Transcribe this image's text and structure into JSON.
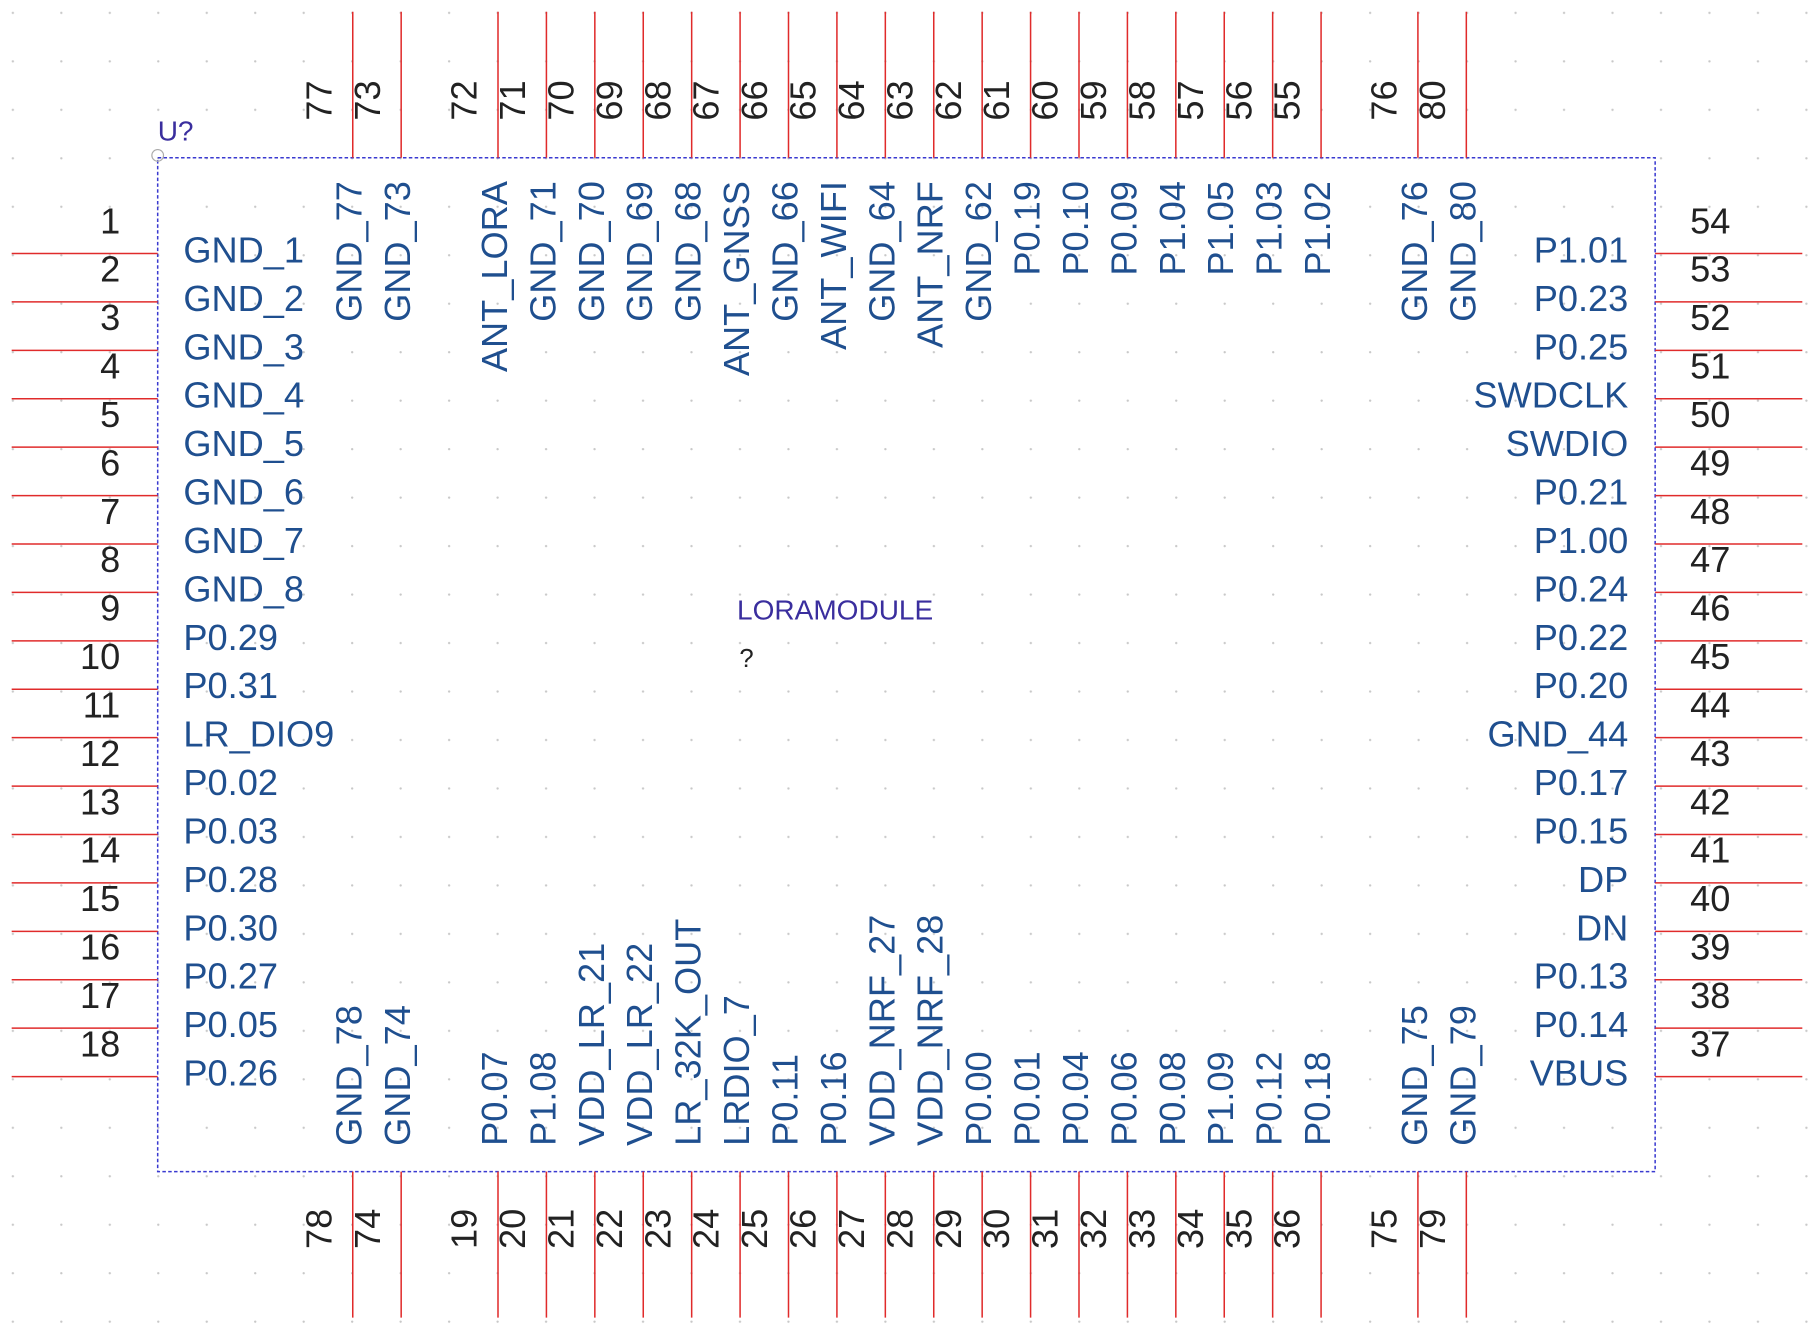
{
  "designator": "U?",
  "part_name": "LORAMODULE",
  "value": "?",
  "left_pins": [
    {
      "number": "1",
      "name": "GND_1"
    },
    {
      "number": "2",
      "name": "GND_2"
    },
    {
      "number": "3",
      "name": "GND_3"
    },
    {
      "number": "4",
      "name": "GND_4"
    },
    {
      "number": "5",
      "name": "GND_5"
    },
    {
      "number": "6",
      "name": "GND_6"
    },
    {
      "number": "7",
      "name": "GND_7"
    },
    {
      "number": "8",
      "name": "GND_8"
    },
    {
      "number": "9",
      "name": "P0.29"
    },
    {
      "number": "10",
      "name": "P0.31"
    },
    {
      "number": "11",
      "name": "LR_DIO9"
    },
    {
      "number": "12",
      "name": "P0.02"
    },
    {
      "number": "13",
      "name": "P0.03"
    },
    {
      "number": "14",
      "name": "P0.28"
    },
    {
      "number": "15",
      "name": "P0.30"
    },
    {
      "number": "16",
      "name": "P0.27"
    },
    {
      "number": "17",
      "name": "P0.05"
    },
    {
      "number": "18",
      "name": "P0.26"
    }
  ],
  "right_pins": [
    {
      "number": "54",
      "name": "P1.01"
    },
    {
      "number": "53",
      "name": "P0.23"
    },
    {
      "number": "52",
      "name": "P0.25"
    },
    {
      "number": "51",
      "name": "SWDCLK"
    },
    {
      "number": "50",
      "name": "SWDIO"
    },
    {
      "number": "49",
      "name": "P0.21"
    },
    {
      "number": "48",
      "name": "P1.00"
    },
    {
      "number": "47",
      "name": "P0.24"
    },
    {
      "number": "46",
      "name": "P0.22"
    },
    {
      "number": "45",
      "name": "P0.20"
    },
    {
      "number": "44",
      "name": "GND_44"
    },
    {
      "number": "43",
      "name": "P0.17"
    },
    {
      "number": "42",
      "name": "P0.15"
    },
    {
      "number": "41",
      "name": "DP"
    },
    {
      "number": "40",
      "name": "DN"
    },
    {
      "number": "39",
      "name": "P0.13"
    },
    {
      "number": "38",
      "name": "P0.14"
    },
    {
      "number": "37",
      "name": "VBUS"
    }
  ],
  "top_pins": [
    {
      "number": "77",
      "name": "GND_77"
    },
    {
      "number": "73",
      "name": "GND_73"
    },
    {
      "number": "72",
      "name": "ANT_LORA"
    },
    {
      "number": "71",
      "name": "GND_71"
    },
    {
      "number": "70",
      "name": "GND_70"
    },
    {
      "number": "69",
      "name": "GND_69"
    },
    {
      "number": "68",
      "name": "GND_68"
    },
    {
      "number": "67",
      "name": "ANT_GNSS"
    },
    {
      "number": "66",
      "name": "GND_66"
    },
    {
      "number": "65",
      "name": "ANT_WIFI"
    },
    {
      "number": "64",
      "name": "GND_64"
    },
    {
      "number": "63",
      "name": "ANT_NRF"
    },
    {
      "number": "62",
      "name": "GND_62"
    },
    {
      "number": "61",
      "name": "P0.19"
    },
    {
      "number": "60",
      "name": "P0.10"
    },
    {
      "number": "59",
      "name": "P0.09"
    },
    {
      "number": "58",
      "name": "P1.04"
    },
    {
      "number": "57",
      "name": "P1.05"
    },
    {
      "number": "56",
      "name": "P1.03"
    },
    {
      "number": "55",
      "name": "P1.02"
    },
    {
      "number": "76",
      "name": "GND_76"
    },
    {
      "number": "80",
      "name": "GND_80"
    }
  ],
  "bottom_pins": [
    {
      "number": "78",
      "name": "GND_78"
    },
    {
      "number": "74",
      "name": "GND_74"
    },
    {
      "number": "19",
      "name": "P0.07"
    },
    {
      "number": "20",
      "name": "P1.08"
    },
    {
      "number": "21",
      "name": "VDD_LR_21"
    },
    {
      "number": "22",
      "name": "VDD_LR_22"
    },
    {
      "number": "23",
      "name": "LR_32K_OUT"
    },
    {
      "number": "24",
      "name": "LRDIO_7"
    },
    {
      "number": "25",
      "name": "P0.11"
    },
    {
      "number": "26",
      "name": "P0.16"
    },
    {
      "number": "27",
      "name": "VDD_NRF_27"
    },
    {
      "number": "28",
      "name": "VDD_NRF_28"
    },
    {
      "number": "29",
      "name": "P0.00"
    },
    {
      "number": "30",
      "name": "P0.01"
    },
    {
      "number": "31",
      "name": "P0.04"
    },
    {
      "number": "32",
      "name": "P0.06"
    },
    {
      "number": "33",
      "name": "P0.08"
    },
    {
      "number": "34",
      "name": "P1.09"
    },
    {
      "number": "35",
      "name": "P0.12"
    },
    {
      "number": "36",
      "name": "P0.18"
    },
    {
      "number": "75",
      "name": "GND_75"
    },
    {
      "number": "79",
      "name": "GND_79"
    }
  ]
}
